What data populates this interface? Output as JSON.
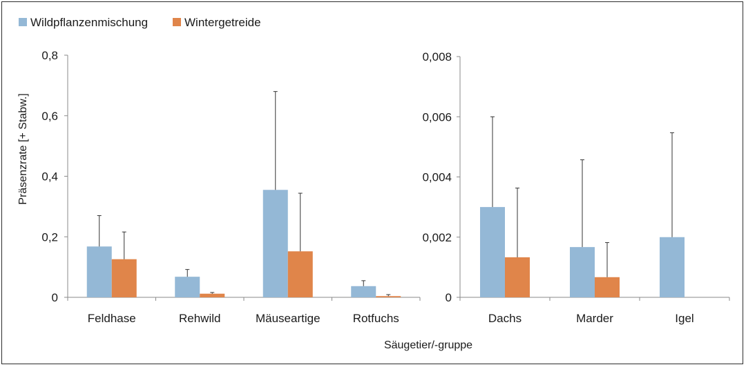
{
  "chart_data": {
    "type": "bar",
    "xlabel": "Säugetier/-gruppe",
    "ylabel": "Präsenzrate [+ Stabw.]",
    "legend": [
      {
        "name": "Wildpflanzenmischung",
        "color": "#94b8d6"
      },
      {
        "name": "Wintergetreide",
        "color": "#e0854a"
      }
    ],
    "panels": [
      {
        "ylim": [
          0,
          0.8
        ],
        "ticks": [
          "0",
          "0,2",
          "0,4",
          "0,6",
          "0,8"
        ],
        "tick_values": [
          0,
          0.2,
          0.4,
          0.6,
          0.8
        ],
        "categories": [
          "Feldhase",
          "Rehwild",
          "Mäuseartige",
          "Rotfuchs"
        ],
        "series": [
          {
            "name": "Wildpflanzenmischung",
            "values": [
              0.168,
              0.068,
              0.355,
              0.037
            ],
            "error": [
              0.102,
              0.024,
              0.325,
              0.018
            ]
          },
          {
            "name": "Wintergetreide",
            "values": [
              0.126,
              0.012,
              0.152,
              0.004
            ],
            "error": [
              0.09,
              0.004,
              0.192,
              0.005
            ]
          }
        ]
      },
      {
        "ylim": [
          0,
          0.008
        ],
        "ticks": [
          "0",
          "0,002",
          "0,004",
          "0,006",
          "0,008"
        ],
        "tick_values": [
          0,
          0.002,
          0.004,
          0.006,
          0.008
        ],
        "categories": [
          "Dachs",
          "Marder",
          "Igel"
        ],
        "series": [
          {
            "name": "Wildpflanzenmischung",
            "values": [
              0.003,
              0.00167,
              0.002
            ],
            "error": [
              0.003,
              0.0029,
              0.00347
            ]
          },
          {
            "name": "Wintergetreide",
            "values": [
              0.00133,
              0.00067,
              0
            ],
            "error": [
              0.0023,
              0.00115,
              0
            ]
          }
        ]
      }
    ]
  }
}
